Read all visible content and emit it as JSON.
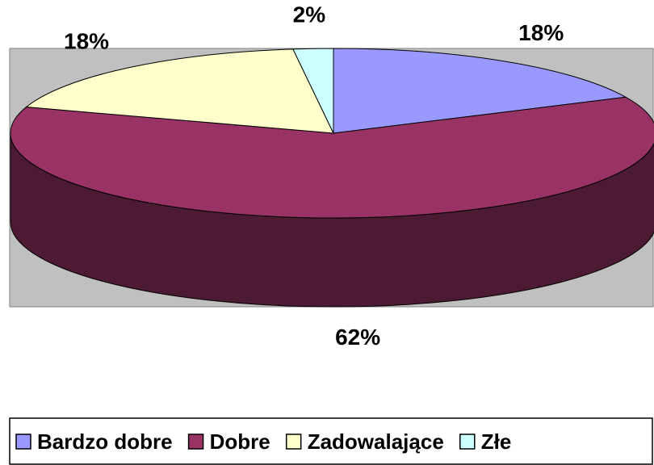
{
  "chart_data": {
    "type": "pie",
    "categories": [
      "Bardzo dobre",
      "Dobre",
      "Zadowalające",
      "Złe"
    ],
    "series": [
      {
        "values": [
          18,
          62,
          18,
          2
        ],
        "value_labels": [
          "18%",
          "62%",
          "18%",
          "2%"
        ],
        "colors": [
          "#9999ff",
          "#993366",
          "#ffffcc",
          "#ccffff"
        ]
      }
    ],
    "legend": "bottom"
  }
}
